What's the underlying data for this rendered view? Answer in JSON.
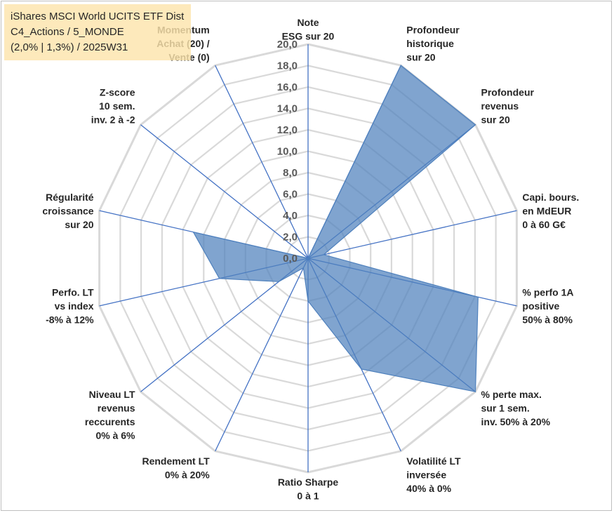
{
  "title_lines": [
    "iShares MSCI World UCITS ETF Dist",
    "C4_Actions / 5_MONDE",
    "(2,0% | 1,3%) / 2025W31"
  ],
  "colors": {
    "grid": "#d9d9d9",
    "spoke": "#4472c4",
    "fill": "#4f81bd",
    "fill_opacity": 0.72,
    "stroke": "#4f81bd",
    "title_bg": "#fce4ac"
  },
  "chart_data": {
    "type": "radar",
    "title": "",
    "r_range": [
      0,
      20
    ],
    "r_ticks": [
      "0,0",
      "2,0",
      "4,0",
      "6,0",
      "8,0",
      "10,0",
      "12,0",
      "14,0",
      "16,0",
      "18,0",
      "20,0"
    ],
    "grid": true,
    "legend": "none",
    "axes": [
      [
        "Note",
        "ESG sur 20"
      ],
      [
        "Profondeur",
        "historique",
        "sur 20"
      ],
      [
        "Profondeur",
        "revenus",
        "sur 20"
      ],
      [
        "Capi. bours.",
        "en MdEUR",
        "0 à 60 G€"
      ],
      [
        "% perfo 1A",
        "positive",
        "50% à 80%"
      ],
      [
        "% perte max.",
        "sur 1 sem.",
        "inv. 50% à 20%"
      ],
      [
        "Volatilité LT",
        "inversée",
        "40% à 0%"
      ],
      [
        "Ratio Sharpe",
        "0 à 1"
      ],
      [
        "Rendement LT",
        "0% à 20%"
      ],
      [
        "Niveau LT",
        "revenus",
        "reccurents",
        "0% à 6%"
      ],
      [
        "Perfo. LT",
        "vs index",
        "-8% à 12%"
      ],
      [
        "Régularité",
        "croissance",
        "sur 20"
      ],
      [
        "Z-score",
        "10 sem.",
        "inv. 2 à -2"
      ],
      [
        "Momentum",
        "Achat (20) /",
        "Vente (0)"
      ]
    ],
    "series": [
      {
        "values": [
          0,
          20,
          20,
          1.5,
          16.3,
          20,
          11.5,
          4,
          1,
          3.5,
          8.5,
          11,
          0,
          0
        ]
      }
    ]
  }
}
